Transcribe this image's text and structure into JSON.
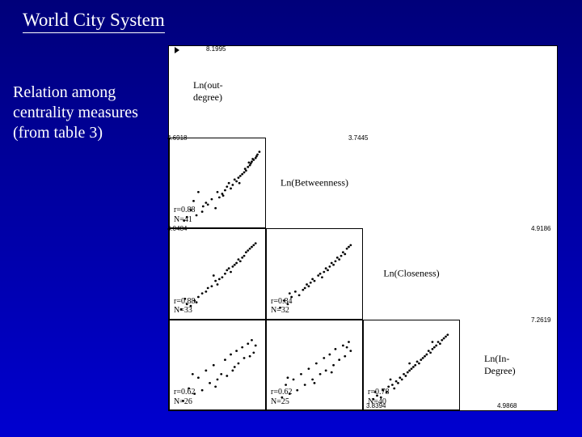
{
  "slide": {
    "title": "World City System",
    "subtitle": "Relation among centrality measures (from table 3)",
    "title_fontsize": 23,
    "subtitle_fontsize": 20,
    "text_color": "#ffffff",
    "bg_gradient_top": "#00007a",
    "bg_gradient_bottom": "#0000d0"
  },
  "matrix": {
    "type": "scatter-matrix",
    "n_vars": 4,
    "plot_bg": "#ffffff",
    "border_color": "#000000",
    "point_color": "#000000",
    "point_size": 1.2,
    "label_font": "Times New Roman",
    "variables": [
      {
        "name": "Ln(out-degree)",
        "axis_top": "8.1995",
        "axis_left": "4.6918"
      },
      {
        "name": "Ln(Betweenness)",
        "axis_inner": "3.7445",
        "axis_left": "4.0484"
      },
      {
        "name": "Ln(Closeness)",
        "axis_right": "4.9186",
        "axis_bottom_left": "3.8394"
      },
      {
        "name": "Ln(In-Degree)",
        "axis_right": "7.2619",
        "axis_bottom": "4.9868"
      }
    ],
    "pairs": {
      "r1c0": {
        "r": "0.88",
        "N": "41",
        "points": [
          [
            18,
            12
          ],
          [
            22,
            20
          ],
          [
            28,
            14
          ],
          [
            30,
            40
          ],
          [
            34,
            18
          ],
          [
            40,
            26
          ],
          [
            44,
            32
          ],
          [
            48,
            22
          ],
          [
            52,
            34
          ],
          [
            55,
            38
          ],
          [
            58,
            42
          ],
          [
            60,
            46
          ],
          [
            62,
            50
          ],
          [
            66,
            48
          ],
          [
            70,
            52
          ],
          [
            72,
            56
          ],
          [
            74,
            58
          ],
          [
            76,
            60
          ],
          [
            78,
            62
          ],
          [
            80,
            64
          ],
          [
            82,
            68
          ],
          [
            84,
            70
          ],
          [
            85,
            72
          ],
          [
            86,
            74
          ],
          [
            88,
            76
          ],
          [
            90,
            78
          ],
          [
            91,
            80
          ],
          [
            15,
            8
          ],
          [
            25,
            30
          ],
          [
            35,
            24
          ],
          [
            38,
            28
          ],
          [
            50,
            40
          ],
          [
            56,
            36
          ],
          [
            64,
            44
          ],
          [
            68,
            54
          ],
          [
            73,
            50
          ],
          [
            79,
            66
          ],
          [
            83,
            73
          ],
          [
            87,
            77
          ],
          [
            92,
            82
          ],
          [
            94,
            85
          ]
        ]
      },
      "r2c0": {
        "r": "0.88",
        "N": "33",
        "points": [
          [
            12,
            10
          ],
          [
            18,
            16
          ],
          [
            22,
            14
          ],
          [
            26,
            20
          ],
          [
            30,
            24
          ],
          [
            34,
            28
          ],
          [
            38,
            30
          ],
          [
            40,
            34
          ],
          [
            44,
            36
          ],
          [
            48,
            42
          ],
          [
            50,
            38
          ],
          [
            52,
            44
          ],
          [
            55,
            46
          ],
          [
            58,
            50
          ],
          [
            60,
            54
          ],
          [
            62,
            56
          ],
          [
            64,
            52
          ],
          [
            66,
            58
          ],
          [
            68,
            60
          ],
          [
            70,
            62
          ],
          [
            72,
            66
          ],
          [
            74,
            64
          ],
          [
            76,
            68
          ],
          [
            78,
            70
          ],
          [
            80,
            74
          ],
          [
            82,
            76
          ],
          [
            84,
            78
          ],
          [
            86,
            80
          ],
          [
            88,
            82
          ],
          [
            90,
            84
          ],
          [
            16,
            22
          ],
          [
            28,
            18
          ],
          [
            46,
            48
          ]
        ]
      },
      "r2c1": {
        "r": "0.84",
        "N": "32",
        "points": [
          [
            14,
            12
          ],
          [
            18,
            20
          ],
          [
            22,
            16
          ],
          [
            26,
            24
          ],
          [
            30,
            30
          ],
          [
            34,
            26
          ],
          [
            38,
            32
          ],
          [
            40,
            34
          ],
          [
            42,
            38
          ],
          [
            44,
            36
          ],
          [
            48,
            44
          ],
          [
            50,
            42
          ],
          [
            54,
            48
          ],
          [
            56,
            50
          ],
          [
            58,
            46
          ],
          [
            60,
            52
          ],
          [
            62,
            56
          ],
          [
            64,
            54
          ],
          [
            66,
            58
          ],
          [
            68,
            62
          ],
          [
            70,
            60
          ],
          [
            72,
            64
          ],
          [
            74,
            68
          ],
          [
            76,
            66
          ],
          [
            78,
            70
          ],
          [
            80,
            74
          ],
          [
            82,
            72
          ],
          [
            84,
            78
          ],
          [
            86,
            80
          ],
          [
            88,
            82
          ],
          [
            24,
            28
          ],
          [
            46,
            40
          ]
        ]
      },
      "r3c0": {
        "r": "0.62",
        "N": "26",
        "points": [
          [
            14,
            10
          ],
          [
            20,
            24
          ],
          [
            26,
            18
          ],
          [
            30,
            36
          ],
          [
            34,
            22
          ],
          [
            38,
            44
          ],
          [
            42,
            30
          ],
          [
            46,
            50
          ],
          [
            50,
            34
          ],
          [
            54,
            40
          ],
          [
            58,
            56
          ],
          [
            60,
            38
          ],
          [
            64,
            62
          ],
          [
            68,
            48
          ],
          [
            70,
            66
          ],
          [
            72,
            52
          ],
          [
            76,
            70
          ],
          [
            78,
            58
          ],
          [
            82,
            74
          ],
          [
            84,
            60
          ],
          [
            86,
            78
          ],
          [
            88,
            64
          ],
          [
            90,
            72
          ],
          [
            24,
            40
          ],
          [
            48,
            26
          ],
          [
            66,
            44
          ]
        ]
      },
      "r3c1": {
        "r": "0.62",
        "N": "25",
        "points": [
          [
            16,
            14
          ],
          [
            20,
            28
          ],
          [
            24,
            18
          ],
          [
            28,
            34
          ],
          [
            32,
            22
          ],
          [
            36,
            40
          ],
          [
            40,
            28
          ],
          [
            44,
            46
          ],
          [
            48,
            34
          ],
          [
            52,
            52
          ],
          [
            56,
            40
          ],
          [
            60,
            58
          ],
          [
            62,
            44
          ],
          [
            66,
            62
          ],
          [
            70,
            50
          ],
          [
            72,
            68
          ],
          [
            76,
            56
          ],
          [
            80,
            72
          ],
          [
            82,
            60
          ],
          [
            86,
            76
          ],
          [
            88,
            66
          ],
          [
            22,
            36
          ],
          [
            50,
            30
          ],
          [
            68,
            42
          ],
          [
            84,
            70
          ]
        ]
      },
      "r3c2": {
        "r": "0.78",
        "N": "40",
        "points": [
          [
            10,
            12
          ],
          [
            14,
            16
          ],
          [
            18,
            14
          ],
          [
            20,
            22
          ],
          [
            24,
            20
          ],
          [
            26,
            26
          ],
          [
            30,
            28
          ],
          [
            32,
            24
          ],
          [
            34,
            32
          ],
          [
            36,
            30
          ],
          [
            38,
            36
          ],
          [
            40,
            34
          ],
          [
            42,
            40
          ],
          [
            44,
            38
          ],
          [
            46,
            42
          ],
          [
            48,
            44
          ],
          [
            50,
            46
          ],
          [
            52,
            48
          ],
          [
            54,
            50
          ],
          [
            56,
            54
          ],
          [
            58,
            52
          ],
          [
            60,
            56
          ],
          [
            62,
            58
          ],
          [
            64,
            60
          ],
          [
            66,
            62
          ],
          [
            68,
            66
          ],
          [
            70,
            64
          ],
          [
            72,
            68
          ],
          [
            74,
            70
          ],
          [
            76,
            72
          ],
          [
            78,
            76
          ],
          [
            80,
            74
          ],
          [
            82,
            78
          ],
          [
            84,
            80
          ],
          [
            86,
            82
          ],
          [
            88,
            84
          ],
          [
            12,
            20
          ],
          [
            28,
            34
          ],
          [
            48,
            52
          ],
          [
            72,
            76
          ]
        ]
      }
    }
  }
}
